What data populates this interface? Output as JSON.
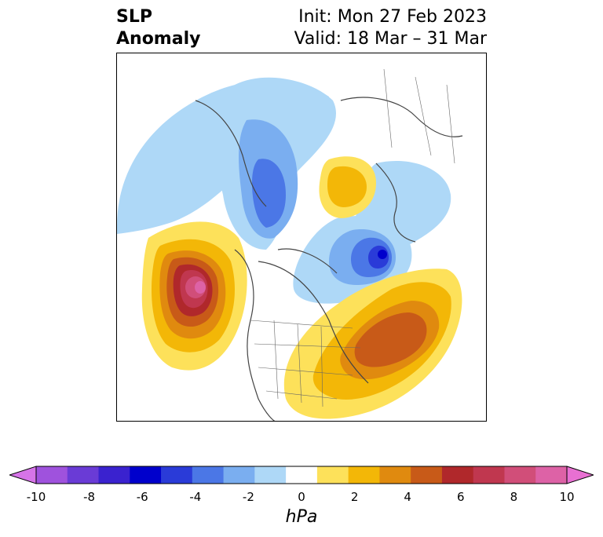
{
  "title": {
    "variable_line1": "SLP",
    "variable_line2": "Anomaly",
    "init": "Init: Mon 27 Feb 2023",
    "valid": "Valid: 18 Mar – 31 Mar"
  },
  "colorbar": {
    "unit_label": "hPa",
    "tick_labels": [
      "-10",
      "-8",
      "-6",
      "-4",
      "-2",
      "0",
      "2",
      "4",
      "6",
      "8",
      "10"
    ],
    "colors": [
      "#d674e8",
      "#9f52dd",
      "#6a3bd6",
      "#3a22cf",
      "#0000cc",
      "#2a3bd8",
      "#4b77e6",
      "#7aaef0",
      "#aed8f7",
      "#ffffff",
      "#fde15a",
      "#f3b707",
      "#e08a0f",
      "#c85a18",
      "#b0282b",
      "#c0374f",
      "#d14e79",
      "#dd62a6",
      "#e870d2"
    ]
  },
  "map": {
    "projection": "north-polar-stereographic",
    "features": [
      "coastlines",
      "country-borders",
      "us-state-borders"
    ]
  }
}
